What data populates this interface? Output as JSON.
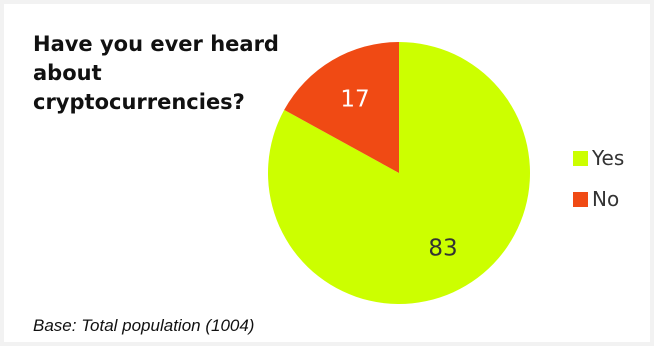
{
  "chart_data": {
    "type": "pie",
    "title": "Have you ever heard about cryptocurrencies?",
    "categories": [
      "Yes",
      "No"
    ],
    "values": [
      83,
      17
    ],
    "colors": [
      "#ccff00",
      "#f04a14"
    ],
    "legend_position": "right",
    "footnote": "Base: Total population (1004)"
  }
}
